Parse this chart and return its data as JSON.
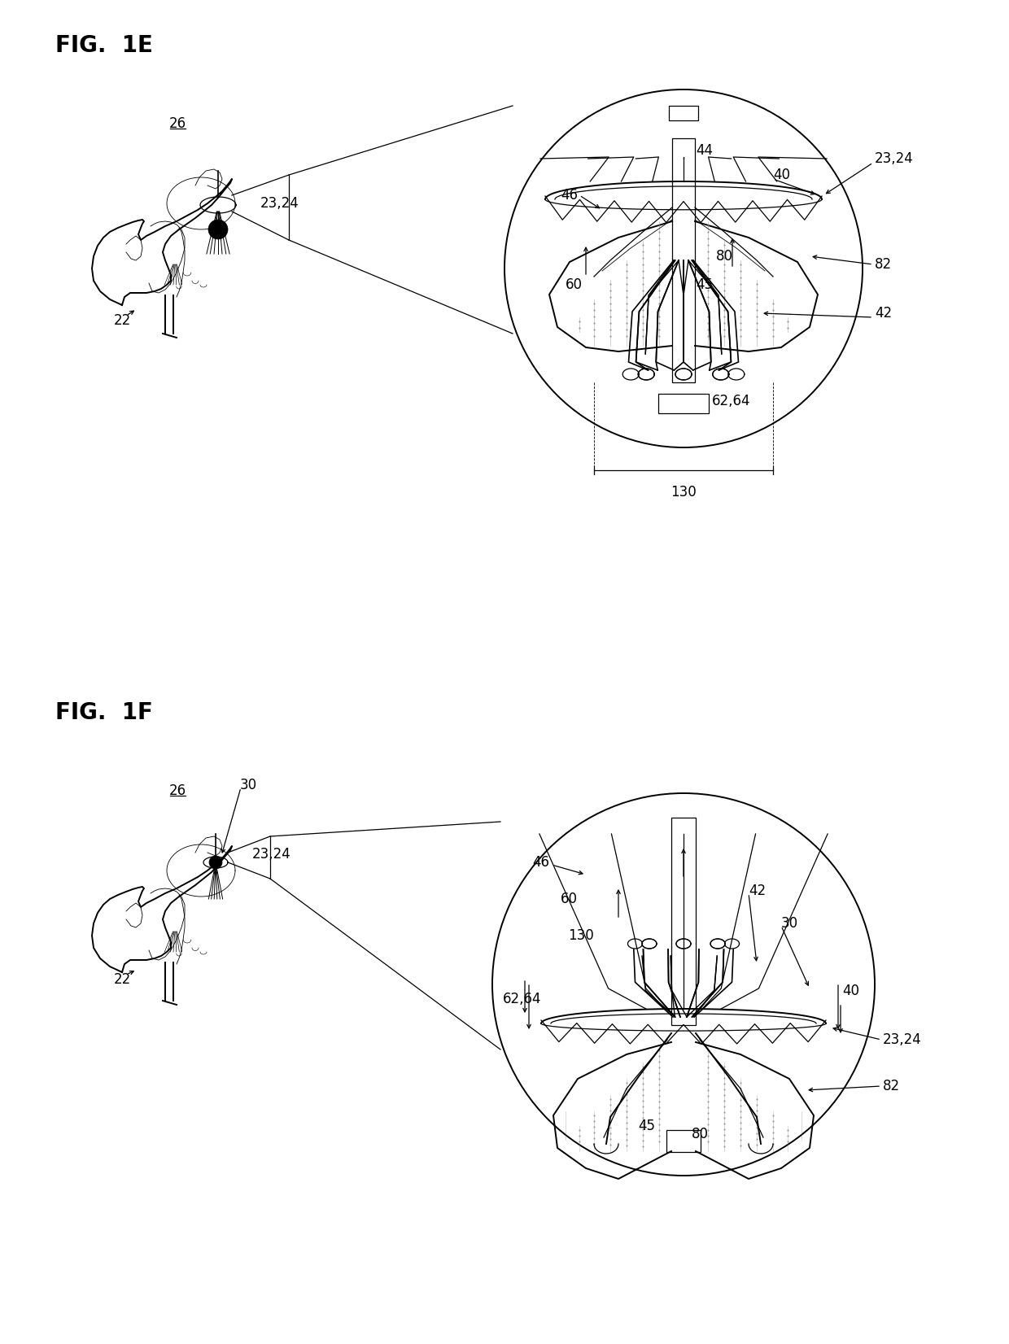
{
  "fig1E_title": "FIG.  1E",
  "fig1F_title": "FIG.  1F",
  "bg_color": "#ffffff",
  "line_color": "#000000",
  "title_fontsize": 20,
  "label_fontsize": 12,
  "fig_width": 12.4,
  "fig_height": 16.52,
  "dpi": 100
}
